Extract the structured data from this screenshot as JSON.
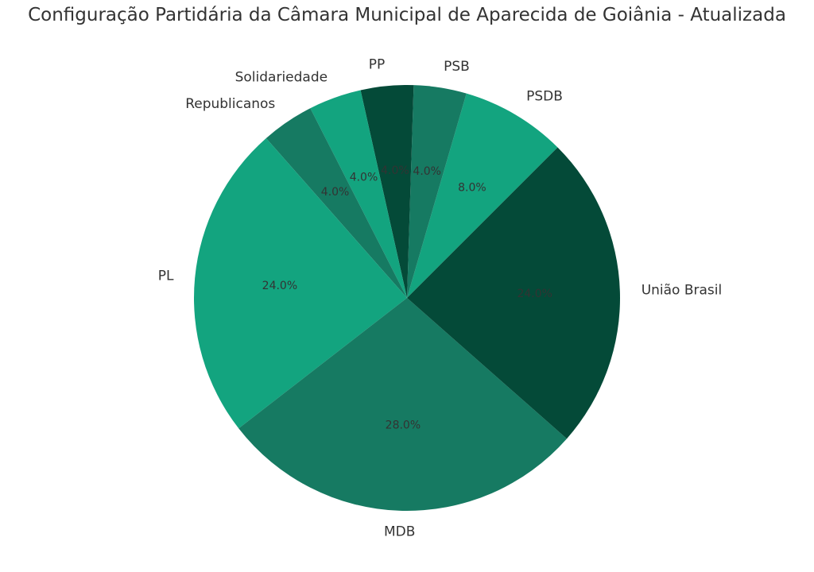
{
  "chart_data": {
    "type": "pie",
    "title": "Configuração Partidária da Câmara Municipal de Aparecida de Goiânia - Atualizada",
    "start_angle_deg": 45,
    "direction": "counterclockwise",
    "slices": [
      {
        "label": "PSDB",
        "value": 8.0,
        "pct_label": "8.0%",
        "color": "#13a47f"
      },
      {
        "label": "PSB",
        "value": 4.0,
        "pct_label": "4.0%",
        "color": "#167a62"
      },
      {
        "label": "PP",
        "value": 4.0,
        "pct_label": "4.0%",
        "color": "#044a38"
      },
      {
        "label": "Solidariedade",
        "value": 4.0,
        "pct_label": "4.0%",
        "color": "#13a47f"
      },
      {
        "label": "Republicanos",
        "value": 4.0,
        "pct_label": "4.0%",
        "color": "#167a62"
      },
      {
        "label": "PL",
        "value": 24.0,
        "pct_label": "24.0%",
        "color": "#13a47f"
      },
      {
        "label": "MDB",
        "value": 28.0,
        "pct_label": "28.0%",
        "color": "#167a62"
      },
      {
        "label": "União Brasil",
        "value": 24.0,
        "pct_label": "24.0%",
        "color": "#044a38"
      }
    ]
  }
}
